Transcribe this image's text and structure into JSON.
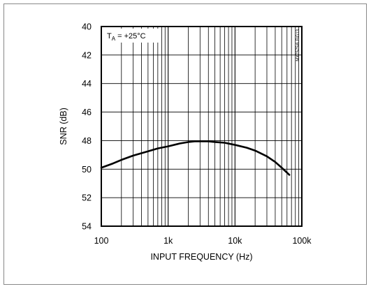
{
  "chart_data": {
    "type": "line",
    "title": "",
    "xlabel": "INPUT FREQUENCY (Hz)",
    "ylabel": "SNR (dB)",
    "x_scale": "log",
    "xlim": [
      100,
      100000
    ],
    "ylim": [
      54,
      40
    ],
    "y_axis_inverted": true,
    "x_tick_values": [
      100,
      1000,
      10000,
      100000
    ],
    "x_tick_labels": [
      "100",
      "1k",
      "10k",
      "100k"
    ],
    "y_tick_values": [
      40,
      42,
      44,
      46,
      48,
      50,
      52,
      54
    ],
    "y_tick_labels": [
      "40",
      "42",
      "44",
      "46",
      "48",
      "50",
      "52",
      "54"
    ],
    "grid": true,
    "annotation": {
      "prefix": "T",
      "subscript": "A",
      "suffix": " = +25°C"
    },
    "figure_id": "MX7575/6 FIG13",
    "series": [
      {
        "x": [
          100,
          150,
          200,
          300,
          500,
          700,
          1000,
          1500,
          2000,
          2500,
          3000,
          4000,
          5000,
          7000,
          10000,
          15000,
          20000,
          30000,
          40000,
          50000,
          65000
        ],
        "y": [
          49.9,
          49.6,
          49.35,
          49.05,
          48.75,
          48.55,
          48.4,
          48.2,
          48.1,
          48.05,
          48.05,
          48.05,
          48.1,
          48.15,
          48.3,
          48.5,
          48.7,
          49.1,
          49.5,
          49.9,
          50.4
        ]
      }
    ]
  }
}
